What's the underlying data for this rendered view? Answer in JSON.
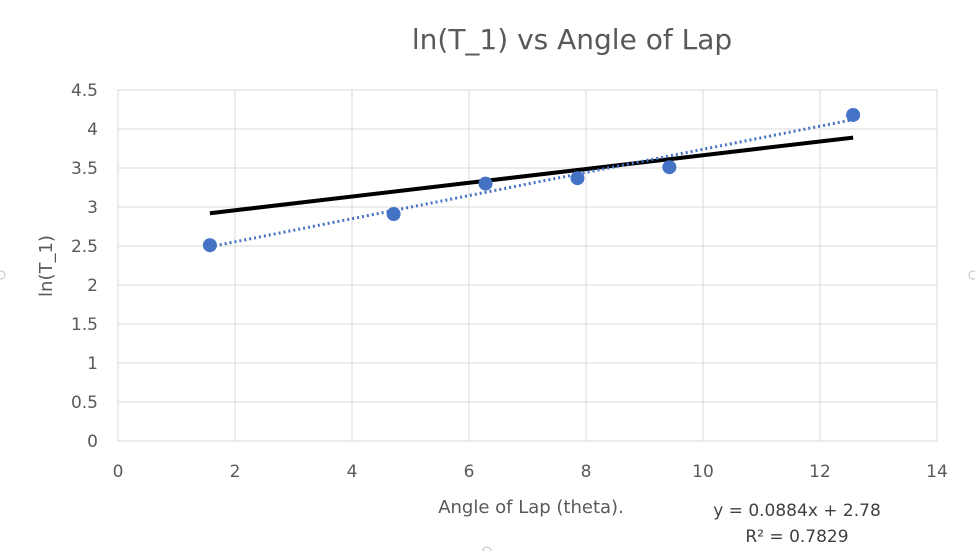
{
  "chart_data": {
    "type": "scatter",
    "title": "ln(T_1) vs Angle of Lap",
    "xlabel": "Angle of Lap (theta).",
    "ylabel": "ln(T_1)",
    "xlim": [
      0,
      14
    ],
    "ylim": [
      0,
      4.5
    ],
    "x_ticks": [
      "0",
      "2",
      "4",
      "6",
      "8",
      "10",
      "12",
      "14"
    ],
    "y_ticks": [
      "0",
      "0.5",
      "1",
      "1.5",
      "2",
      "2.5",
      "3",
      "3.5",
      "4",
      "4.5"
    ],
    "grid": true,
    "legend": "none",
    "series": [
      {
        "type": "scatter",
        "color": "#4472c4",
        "points": [
          {
            "x": 1.571,
            "y": 2.51
          },
          {
            "x": 4.712,
            "y": 2.91
          },
          {
            "x": 6.283,
            "y": 3.3
          },
          {
            "x": 7.854,
            "y": 3.37
          },
          {
            "x": 9.425,
            "y": 3.51
          },
          {
            "x": 12.566,
            "y": 4.18
          }
        ]
      },
      {
        "type": "trendline",
        "style": "dotted",
        "color": "#4472c4",
        "points": [
          {
            "x": 1.571,
            "y": 2.49
          },
          {
            "x": 12.566,
            "y": 4.12
          }
        ]
      },
      {
        "type": "line",
        "style": "solid",
        "color": "#000000",
        "points": [
          {
            "x": 1.571,
            "y": 2.92
          },
          {
            "x": 12.566,
            "y": 3.89
          }
        ]
      }
    ],
    "annotations": {
      "equation": "y = 0.0884x + 2.78",
      "r_squared": "R² = 0.7829"
    }
  }
}
